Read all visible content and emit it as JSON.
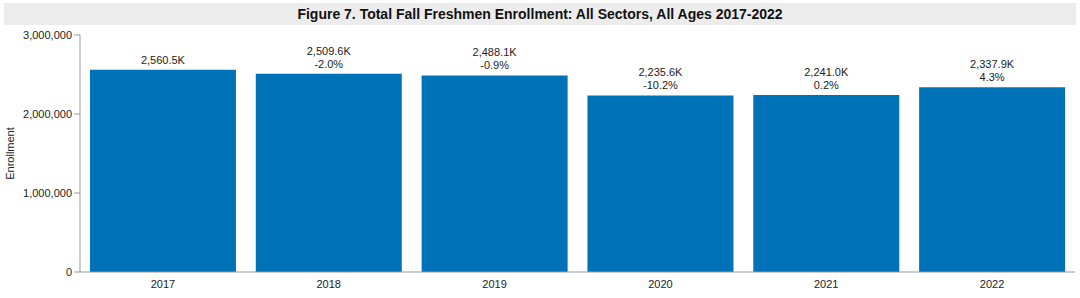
{
  "chart_data": {
    "type": "bar",
    "title": "Figure 7. Total Fall Freshmen Enrollment: All Sectors, All Ages 2017-2022",
    "categories": [
      "2017",
      "2018",
      "2019",
      "2020",
      "2021",
      "2022"
    ],
    "values": [
      2560500,
      2509600,
      2488100,
      2235600,
      2241000,
      2337900
    ],
    "value_labels": [
      "2,560.5K",
      "2,509.6K",
      "2,488.1K",
      "2,235.6K",
      "2,241.0K",
      "2,337.9K"
    ],
    "change_labels": [
      null,
      "-2.0%",
      "-0.9%",
      "-10.2%",
      "0.2%",
      "4.3%"
    ],
    "color": "#0072b8",
    "y_label": "Enrollment",
    "ylim": [
      0,
      3000000
    ],
    "yticks": [
      {
        "value": 0,
        "label": "0"
      },
      {
        "value": 1000000,
        "label": "1,000,000"
      },
      {
        "value": 2000000,
        "label": "2,000,000"
      },
      {
        "value": 3000000,
        "label": "3,000,000"
      }
    ],
    "grid": false,
    "data_labels": true
  }
}
